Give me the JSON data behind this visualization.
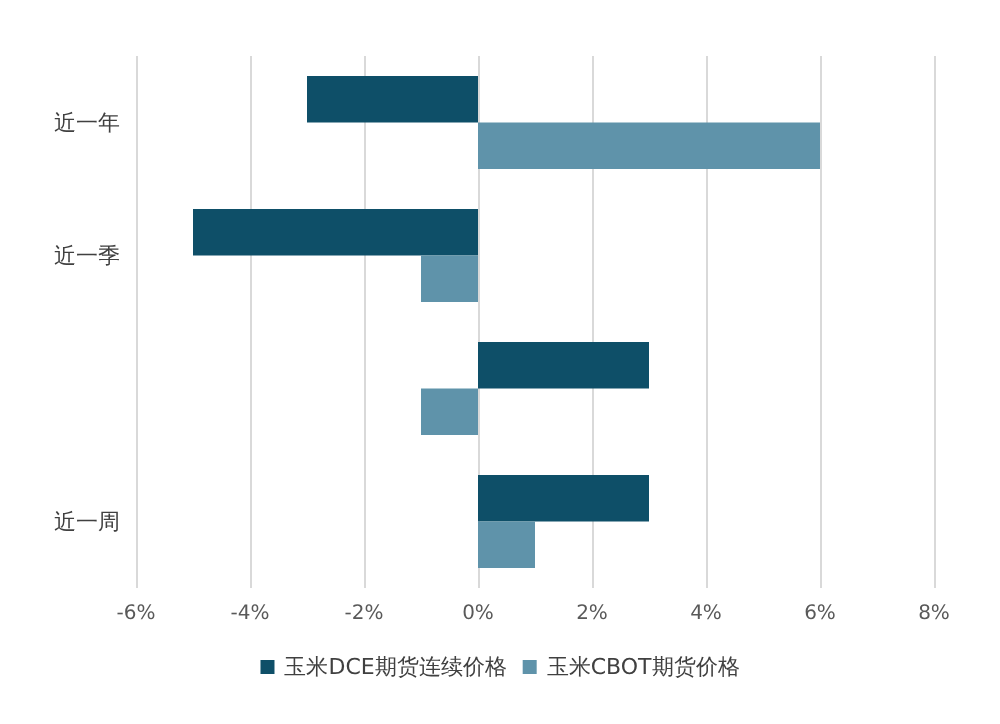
{
  "chart_data": {
    "type": "bar",
    "orientation": "horizontal",
    "categories": [
      "近一年",
      "近一季",
      null,
      "近一周"
    ],
    "series": [
      {
        "name": "玉米DCE期货连续价格",
        "color": "#0e4f68",
        "values": [
          -3,
          -5,
          3,
          3
        ]
      },
      {
        "name": "玉米CBOT期货价格",
        "color": "#5f93aa",
        "values": [
          6,
          -1,
          -1,
          1
        ]
      }
    ],
    "xlim": [
      -6,
      8
    ],
    "xticks": [
      {
        "value": -6,
        "label": "-6%"
      },
      {
        "value": -4,
        "label": "-4%"
      },
      {
        "value": -2,
        "label": "-2%"
      },
      {
        "value": 0,
        "label": "0%"
      },
      {
        "value": 2,
        "label": "2%"
      },
      {
        "value": 4,
        "label": "4%"
      },
      {
        "value": 6,
        "label": "6%"
      },
      {
        "value": 8,
        "label": "8%"
      }
    ],
    "grid": "x",
    "legend": "bottom"
  }
}
